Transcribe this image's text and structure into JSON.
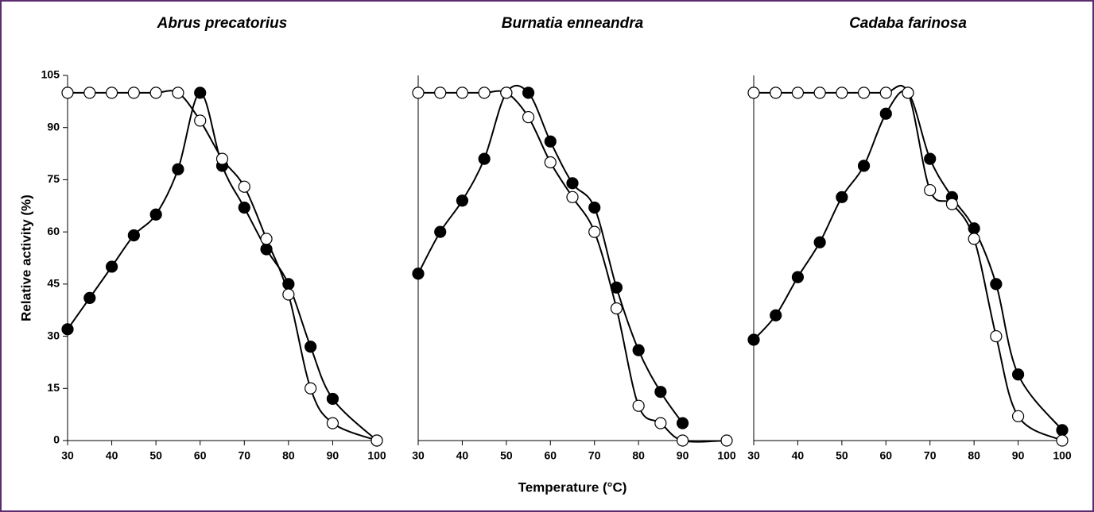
{
  "chart_data": [
    {
      "type": "line",
      "title": "Abrus precatorius",
      "ylabel": "Relative activity (%)",
      "x": [
        30,
        35,
        40,
        45,
        50,
        55,
        60,
        65,
        70,
        75,
        80,
        85,
        90,
        100
      ],
      "series": [
        {
          "color": "#000000",
          "marker": "filled",
          "values": [
            32,
            41,
            50,
            59,
            65,
            78,
            100,
            79,
            67,
            55,
            45,
            27,
            12,
            0
          ]
        },
        {
          "color": "#000000",
          "marker": "open",
          "values": [
            100,
            100,
            100,
            100,
            100,
            100,
            92,
            81,
            73,
            58,
            42,
            15,
            5,
            0
          ]
        }
      ],
      "xlim": [
        30,
        100
      ],
      "xticks": [
        30,
        40,
        50,
        60,
        70,
        80,
        90,
        100
      ],
      "ylim": [
        0,
        105
      ],
      "yticks": [
        0,
        15,
        30,
        45,
        60,
        75,
        90,
        105
      ]
    },
    {
      "type": "line",
      "title": "Burnatia enneandra",
      "xlabel": "Temperature (°C)",
      "x": [
        30,
        35,
        40,
        45,
        50,
        55,
        60,
        65,
        70,
        75,
        80,
        85,
        90,
        100
      ],
      "series": [
        {
          "color": "#000000",
          "marker": "filled",
          "values": [
            48,
            60,
            69,
            81,
            100,
            100,
            86,
            74,
            67,
            44,
            26,
            14,
            5,
            null
          ]
        },
        {
          "color": "#000000",
          "marker": "open",
          "values": [
            100,
            100,
            100,
            100,
            100,
            93,
            80,
            70,
            60,
            38,
            10,
            5,
            0,
            0
          ]
        }
      ],
      "xlim": [
        30,
        100
      ],
      "xticks": [
        30,
        40,
        50,
        60,
        70,
        80,
        90,
        100
      ],
      "ylim": [
        0,
        105
      ]
    },
    {
      "type": "line",
      "title": "Cadaba farinosa",
      "x": [
        30,
        35,
        40,
        45,
        50,
        55,
        60,
        65,
        70,
        75,
        80,
        85,
        90,
        100
      ],
      "series": [
        {
          "color": "#000000",
          "marker": "filled",
          "values": [
            29,
            36,
            47,
            57,
            70,
            79,
            94,
            100,
            81,
            70,
            61,
            45,
            19,
            3
          ]
        },
        {
          "color": "#000000",
          "marker": "open",
          "values": [
            100,
            100,
            100,
            100,
            100,
            100,
            100,
            100,
            72,
            68,
            58,
            30,
            7,
            0
          ]
        }
      ],
      "xlim": [
        30,
        100
      ],
      "xticks": [
        30,
        40,
        50,
        60,
        70,
        80,
        90,
        100
      ],
      "ylim": [
        0,
        105
      ]
    }
  ]
}
